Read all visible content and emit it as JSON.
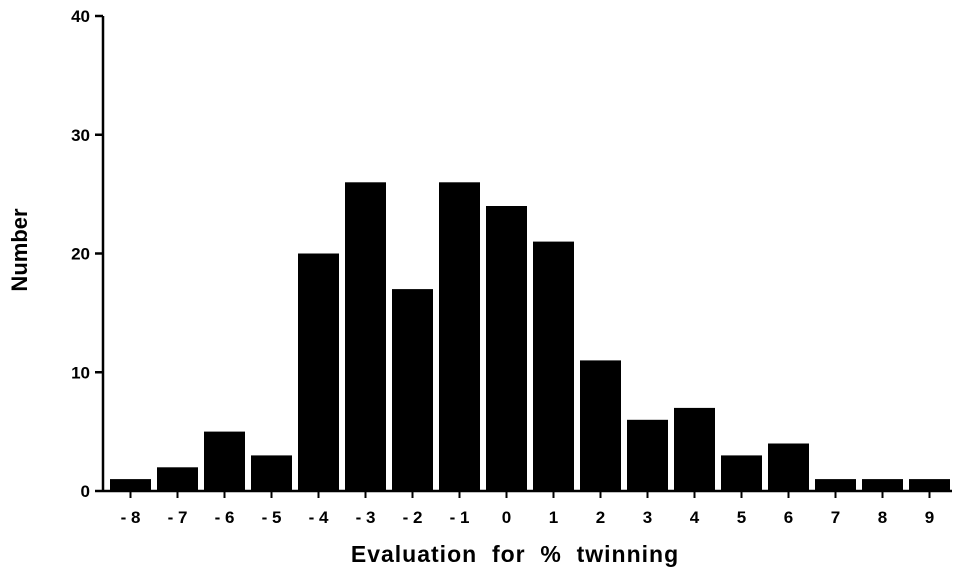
{
  "chart_data": {
    "type": "bar",
    "title": "",
    "xlabel": "Evaluation  for  %  twinning",
    "ylabel": "Number",
    "ylim": [
      0,
      40
    ],
    "yticks": [
      0,
      10,
      20,
      30,
      40
    ],
    "categories": [
      "- 8",
      "- 7",
      "- 6",
      "- 5",
      "- 4",
      "- 3",
      "- 2",
      "- 1",
      "0",
      "1",
      "2",
      "3",
      "4",
      "5",
      "6",
      "7",
      "8",
      "9"
    ],
    "values": [
      1,
      2,
      5,
      3,
      20,
      26,
      17,
      26,
      24,
      21,
      11,
      6,
      7,
      3,
      4,
      1,
      1,
      1
    ],
    "grid": false,
    "legend": "none",
    "bar_color": "#000000"
  }
}
